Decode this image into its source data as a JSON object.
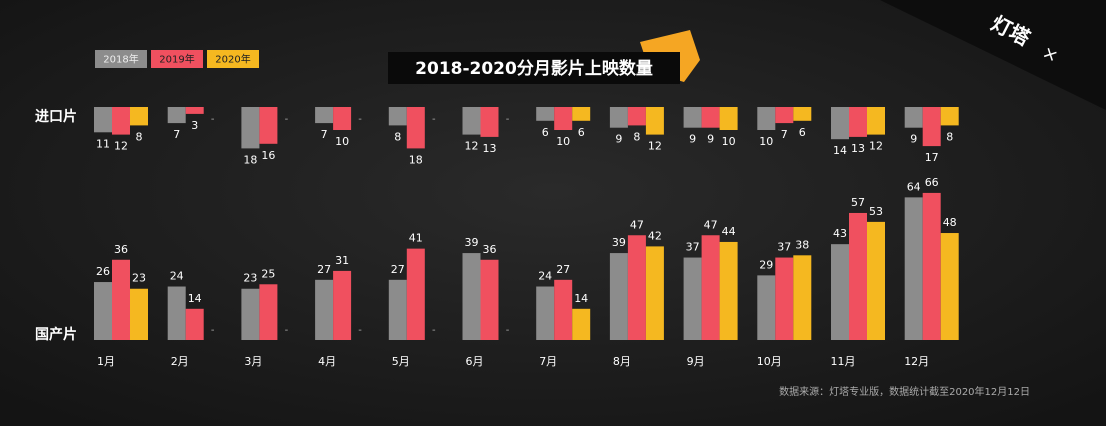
{
  "chart_data": {
    "type": "bar",
    "title": "2018-2020分月影片上映数量",
    "source": "数据来源：灯塔专业版，数据统计截至2020年12月12日",
    "brand": "灯塔",
    "brand_joiner": "×",
    "missing_label": "-",
    "legend": "top-left",
    "categories": [
      "1月",
      "2月",
      "3月",
      "4月",
      "5月",
      "6月",
      "7月",
      "8月",
      "9月",
      "10月",
      "11月",
      "12月"
    ],
    "panels": [
      {
        "label": "进口片",
        "inverted": true,
        "ylim": [
          0,
          20
        ]
      },
      {
        "label": "国产片",
        "inverted": false,
        "ylim": [
          0,
          70
        ]
      }
    ],
    "series": [
      {
        "name": "2018年",
        "color": "#8c8c8c",
        "values": [
          [
            11,
            7,
            18,
            7,
            8,
            12,
            6,
            9,
            9,
            10,
            14,
            9
          ],
          [
            26,
            24,
            23,
            27,
            27,
            39,
            24,
            39,
            37,
            29,
            43,
            64
          ]
        ]
      },
      {
        "name": "2019年",
        "color": "#f0505f",
        "values": [
          [
            12,
            3,
            16,
            10,
            18,
            13,
            10,
            8,
            9,
            7,
            13,
            17
          ],
          [
            36,
            14,
            25,
            31,
            41,
            36,
            27,
            47,
            47,
            37,
            57,
            66
          ]
        ]
      },
      {
        "name": "2020年",
        "color": "#f5b820",
        "values": [
          [
            8,
            null,
            null,
            null,
            null,
            null,
            6,
            12,
            10,
            6,
            12,
            8
          ],
          [
            23,
            null,
            null,
            null,
            null,
            null,
            14,
            42,
            44,
            38,
            53,
            48
          ]
        ]
      }
    ]
  }
}
